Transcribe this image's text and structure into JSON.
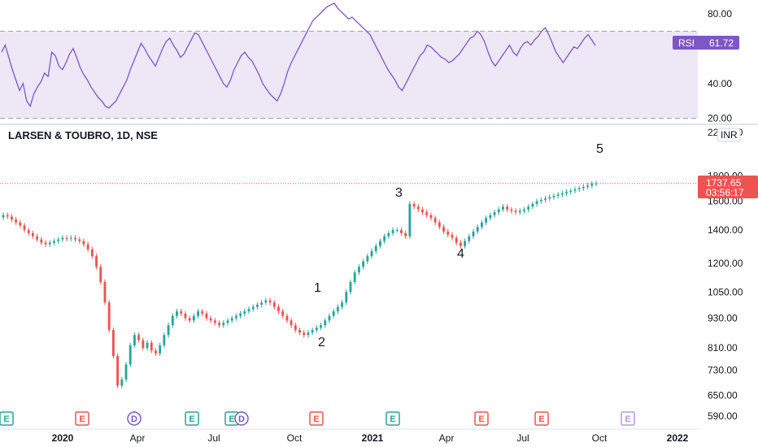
{
  "chart_data": [
    {
      "type": "line",
      "title": "",
      "indicator_label": "RSI",
      "current_value": "61.72",
      "ylim": [
        18,
        86
      ],
      "y_ticks": [
        "80.00",
        "40.00",
        "20.00"
      ],
      "band_levels": [
        70,
        20
      ],
      "line_color": "#7e57c2",
      "band_fill": "#ede7f6",
      "values": [
        58,
        62,
        55,
        48,
        42,
        36,
        40,
        30,
        27,
        34,
        38,
        41,
        46,
        44,
        58,
        56,
        50,
        48,
        52,
        57,
        60,
        55,
        49,
        45,
        42,
        38,
        35,
        32,
        30,
        27,
        26,
        28,
        30,
        34,
        38,
        42,
        48,
        53,
        58,
        63,
        60,
        56,
        53,
        50,
        55,
        60,
        64,
        66,
        62,
        59,
        55,
        57,
        61,
        65,
        69,
        68,
        64,
        60,
        56,
        52,
        48,
        44,
        40,
        38,
        42,
        48,
        52,
        56,
        58,
        55,
        53,
        49,
        45,
        40,
        37,
        34,
        32,
        30,
        34,
        40,
        47,
        52,
        56,
        60,
        64,
        68,
        72,
        76,
        78,
        80,
        82,
        84,
        85,
        86,
        83,
        81,
        79,
        77,
        78,
        76,
        74,
        72,
        70,
        68,
        64,
        60,
        56,
        52,
        48,
        45,
        42,
        38,
        36,
        40,
        44,
        48,
        52,
        56,
        58,
        62,
        61,
        59,
        57,
        55,
        54,
        52,
        53,
        55,
        57,
        60,
        63,
        66,
        67,
        70,
        68,
        64,
        58,
        53,
        50,
        53,
        56,
        59,
        62,
        58,
        56,
        60,
        63,
        64,
        62,
        65,
        67,
        70,
        72,
        68,
        63,
        58,
        55,
        52,
        55,
        58,
        61,
        60,
        63,
        66,
        68,
        65,
        61.72
      ]
    },
    {
      "type": "candlestick",
      "title": "LARSEN & TOUBRO, 1D, NSE",
      "currency_badge": "INR",
      "ylim": [
        560,
        2260
      ],
      "y_ticks": [
        "2200.00",
        "1800.00",
        "1600.00",
        "1400.00",
        "1200.00",
        "1050.00",
        "930.00",
        "810.00",
        "730.00",
        "650.00",
        "590.00"
      ],
      "x_ticks": [
        "2020",
        "Apr",
        "Jul",
        "Oct",
        "2021",
        "Apr",
        "Jul",
        "Oct",
        "2022"
      ],
      "last_price": "1737.65",
      "countdown": "03:56:17",
      "up_color": "#26a69a",
      "down_color": "#ef5350",
      "wave_labels": [
        "1",
        "2",
        "3",
        "4",
        "5"
      ],
      "closes": [
        1500,
        1490,
        1470,
        1450,
        1430,
        1400,
        1380,
        1360,
        1340,
        1320,
        1310,
        1320,
        1330,
        1340,
        1350,
        1345,
        1350,
        1340,
        1330,
        1310,
        1280,
        1240,
        1180,
        1100,
        1000,
        880,
        780,
        680,
        700,
        750,
        820,
        860,
        840,
        810,
        830,
        800,
        790,
        820,
        860,
        900,
        940,
        960,
        950,
        930,
        920,
        940,
        960,
        950,
        930,
        920,
        910,
        900,
        910,
        920,
        930,
        940,
        950,
        960,
        970,
        980,
        990,
        1000,
        1010,
        1000,
        980,
        960,
        940,
        920,
        900,
        880,
        870,
        860,
        870,
        880,
        890,
        900,
        920,
        940,
        960,
        980,
        1000,
        1050,
        1100,
        1150,
        1180,
        1210,
        1240,
        1270,
        1300,
        1330,
        1360,
        1380,
        1400,
        1400,
        1380,
        1360,
        1580,
        1560,
        1540,
        1520,
        1500,
        1480,
        1450,
        1420,
        1390,
        1370,
        1350,
        1320,
        1300,
        1330,
        1360,
        1390,
        1420,
        1450,
        1480,
        1500,
        1520,
        1540,
        1560,
        1540,
        1530,
        1520,
        1530,
        1540,
        1560,
        1580,
        1600,
        1610,
        1620,
        1630,
        1640,
        1650,
        1660,
        1670,
        1680,
        1690,
        1700,
        1710,
        1720,
        1735,
        1737.65
      ]
    }
  ],
  "events": [
    {
      "letter": "E",
      "color": "#26a69a"
    },
    {
      "letter": "E",
      "color": "#ef5350"
    },
    {
      "letter": "D",
      "color": "#7e57c2"
    },
    {
      "letter": "E",
      "color": "#26a69a"
    },
    {
      "letter": "E",
      "color": "#26a69a"
    },
    {
      "letter": "D",
      "color": "#7e57c2"
    },
    {
      "letter": "E",
      "color": "#ef5350"
    },
    {
      "letter": "E",
      "color": "#26a69a"
    },
    {
      "letter": "E",
      "color": "#ef5350"
    },
    {
      "letter": "E",
      "color": "#ef5350"
    },
    {
      "letter": "E",
      "color": "#b39ddb"
    }
  ],
  "colors": {
    "rsi_badge": "#7e57c2",
    "price_badge": "#ef5350",
    "price_line": "#ef5350",
    "divider": "#e0e3eb"
  }
}
